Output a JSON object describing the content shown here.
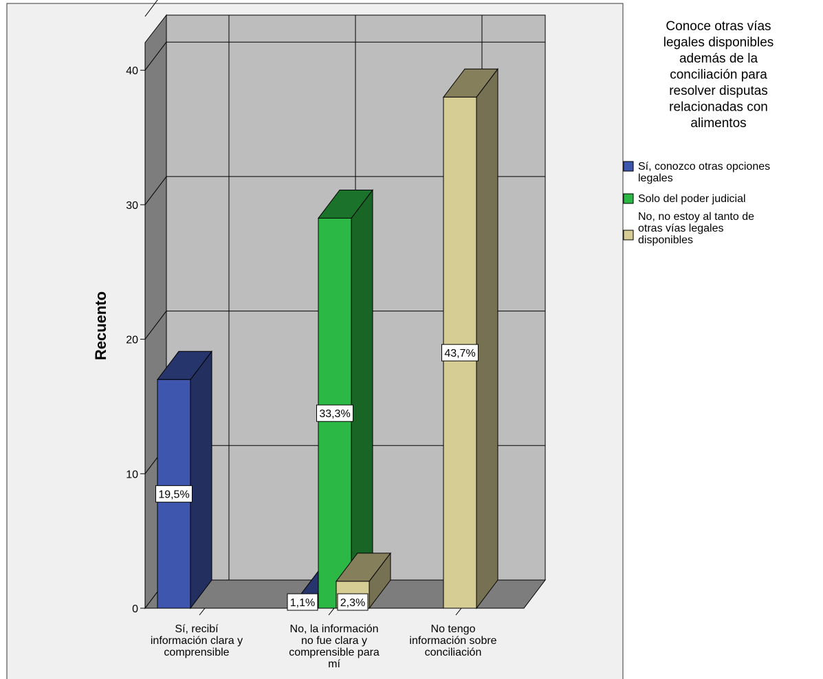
{
  "chart_data": {
    "type": "bar",
    "title": "",
    "ylabel": "Recuento",
    "xlabel": "",
    "ylim": [
      0,
      44
    ],
    "yticks": [
      "0",
      "10",
      "20",
      "30",
      "40"
    ],
    "categories": [
      [
        "Sí, recibí",
        "información clara y",
        "comprensible"
      ],
      [
        "No, la información",
        "no fue clara y",
        "comprensible para",
        "mí"
      ],
      [
        "No tengo",
        "información sobre",
        "conciliación"
      ]
    ],
    "legend": {
      "title": [
        "Conoce otras vías",
        "legales disponibles",
        "además de la",
        "conciliación para",
        "resolver disputas",
        "relacionadas con",
        "alimentos"
      ],
      "position": "right"
    },
    "series": [
      {
        "name": [
          "Sí, conozco otras opciones",
          "legales"
        ],
        "color": "#3e56ad",
        "values": [
          17,
          1,
          0
        ],
        "labels": [
          "19,5%",
          "1,1%",
          ""
        ]
      },
      {
        "name": [
          "Solo del poder judicial"
        ],
        "color": "#2cb844",
        "values": [
          0,
          29,
          0
        ],
        "labels": [
          "",
          "33,3%",
          ""
        ]
      },
      {
        "name": [
          "No, no estoy al tanto de",
          "otras vías legales",
          "disponibles"
        ],
        "color": "#d6cd95",
        "values": [
          0,
          2,
          38
        ],
        "labels": [
          "",
          "2,3%",
          "43,7%"
        ]
      }
    ],
    "grid": true,
    "style": "3d"
  }
}
